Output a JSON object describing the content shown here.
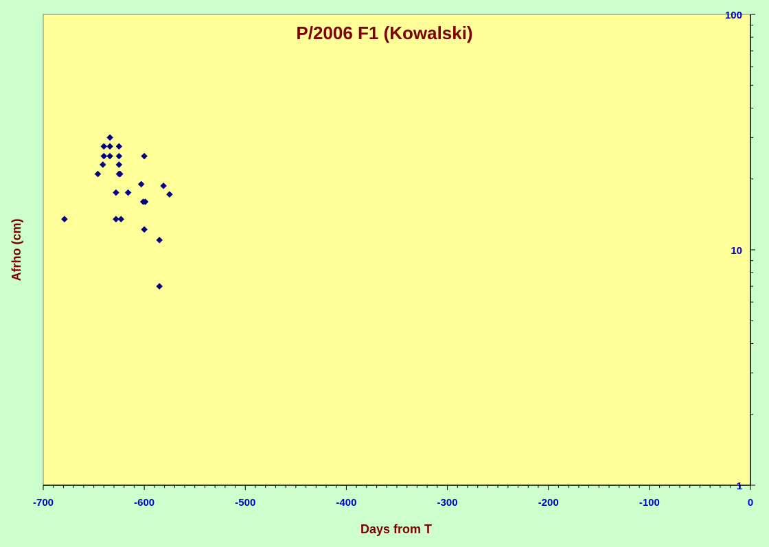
{
  "chart_data": {
    "type": "scatter",
    "title": "P/2006 F1 (Kowalski)",
    "xlabel": "Days from T",
    "ylabel": "Afrho (cm)",
    "xlim": [
      -700,
      0
    ],
    "ylim": [
      1,
      100
    ],
    "yscale": "log",
    "y_axis_side": "right",
    "grid": false,
    "x_ticks": [
      -700,
      -600,
      -500,
      -400,
      -300,
      -200,
      -100,
      0
    ],
    "x_tick_labels": [
      "-700",
      "-600",
      "-500",
      "-400",
      "-300",
      "-200",
      "-100",
      "0"
    ],
    "y_ticks": [
      1,
      10,
      100
    ],
    "y_tick_labels": [
      "1",
      "10",
      "100"
    ],
    "points": [
      {
        "x": -679,
        "y": 13.5
      },
      {
        "x": -646,
        "y": 21.0
      },
      {
        "x": -641,
        "y": 23.0
      },
      {
        "x": -640,
        "y": 25.0
      },
      {
        "x": -640,
        "y": 27.5
      },
      {
        "x": -634,
        "y": 25.0
      },
      {
        "x": -634,
        "y": 27.5
      },
      {
        "x": -634,
        "y": 30.0
      },
      {
        "x": -628,
        "y": 17.5
      },
      {
        "x": -628,
        "y": 13.5
      },
      {
        "x": -625,
        "y": 27.5
      },
      {
        "x": -625,
        "y": 25.0
      },
      {
        "x": -625,
        "y": 23.0
      },
      {
        "x": -625,
        "y": 21.0
      },
      {
        "x": -624,
        "y": 21.0
      },
      {
        "x": -623,
        "y": 13.5
      },
      {
        "x": -616,
        "y": 17.5
      },
      {
        "x": -603,
        "y": 19.0
      },
      {
        "x": -601,
        "y": 16.0
      },
      {
        "x": -600,
        "y": 25.0
      },
      {
        "x": -599,
        "y": 16.0
      },
      {
        "x": -600,
        "y": 12.2
      },
      {
        "x": -585,
        "y": 11.0
      },
      {
        "x": -585,
        "y": 7.0
      },
      {
        "x": -581,
        "y": 18.7
      },
      {
        "x": -575,
        "y": 17.2
      }
    ],
    "colors": {
      "background": "#ccffcc",
      "plot_area": "#ffff99",
      "title": "#800000",
      "axis_title": "#800000",
      "tick_label": "#0000cc",
      "marker": "#000080"
    }
  }
}
